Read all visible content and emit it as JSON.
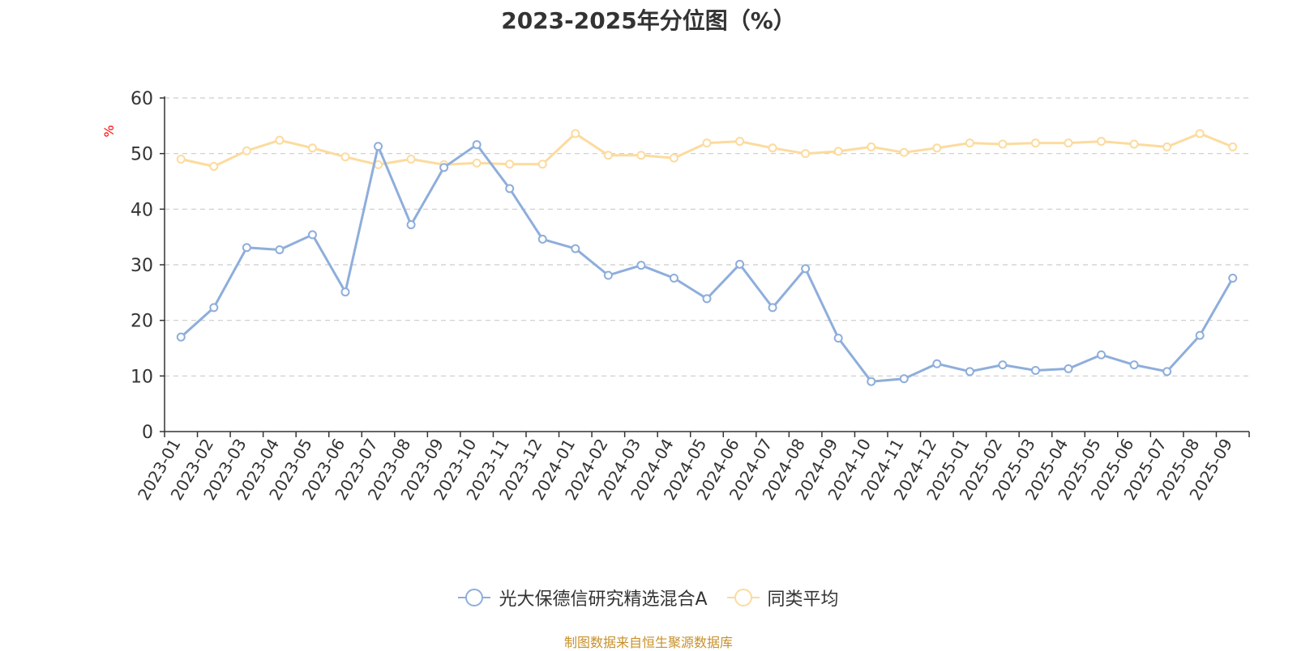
{
  "chart_data": {
    "type": "line",
    "title": "2023-2025年分位图（%）",
    "ylabel": "%",
    "ylim": [
      0,
      60
    ],
    "yticks": [
      0,
      10,
      20,
      30,
      40,
      50,
      60
    ],
    "categories": [
      "2023-01",
      "2023-02",
      "2023-03",
      "2023-04",
      "2023-05",
      "2023-06",
      "2023-07",
      "2023-08",
      "2023-09",
      "2023-10",
      "2023-11",
      "2023-12",
      "2024-01",
      "2024-02",
      "2024-03",
      "2024-04",
      "2024-05",
      "2024-06",
      "2024-07",
      "2024-08",
      "2024-09",
      "2024-10",
      "2024-11",
      "2024-12",
      "2025-01",
      "2025-02",
      "2025-03",
      "2025-04",
      "2025-05",
      "2025-06",
      "2025-07",
      "2025-08",
      "2025-09"
    ],
    "series": [
      {
        "name": "光大保德信研究精选混合A",
        "color": "#8eaedb",
        "values": [
          17.0,
          22.3,
          33.1,
          32.7,
          35.4,
          25.1,
          51.3,
          37.2,
          47.5,
          51.6,
          43.7,
          34.6,
          32.9,
          28.1,
          29.9,
          27.6,
          23.9,
          30.1,
          22.3,
          29.3,
          16.8,
          9.0,
          9.5,
          12.2,
          10.8,
          12.0,
          11.0,
          11.3,
          13.8,
          12.0,
          10.8,
          17.3,
          27.6
        ]
      },
      {
        "name": "同类平均",
        "color": "#fcdb9e",
        "values": [
          49.0,
          47.7,
          50.5,
          52.4,
          51.0,
          49.4,
          48.0,
          49.0,
          48.0,
          48.3,
          48.1,
          48.1,
          53.6,
          49.7,
          49.7,
          49.2,
          51.9,
          52.2,
          51.0,
          50.0,
          50.4,
          51.2,
          50.2,
          51.0,
          51.9,
          51.7,
          51.9,
          51.9,
          52.2,
          51.7,
          51.2,
          53.6,
          51.2
        ]
      }
    ]
  },
  "legend": {
    "item1": "光大保德信研究精选混合A",
    "item2": "同类平均"
  },
  "source_text": "制图数据来自恒生聚源数据库",
  "colors": {
    "axis_unit": "#ff0000",
    "source": "#c8902a",
    "grid": "#cccccc"
  }
}
